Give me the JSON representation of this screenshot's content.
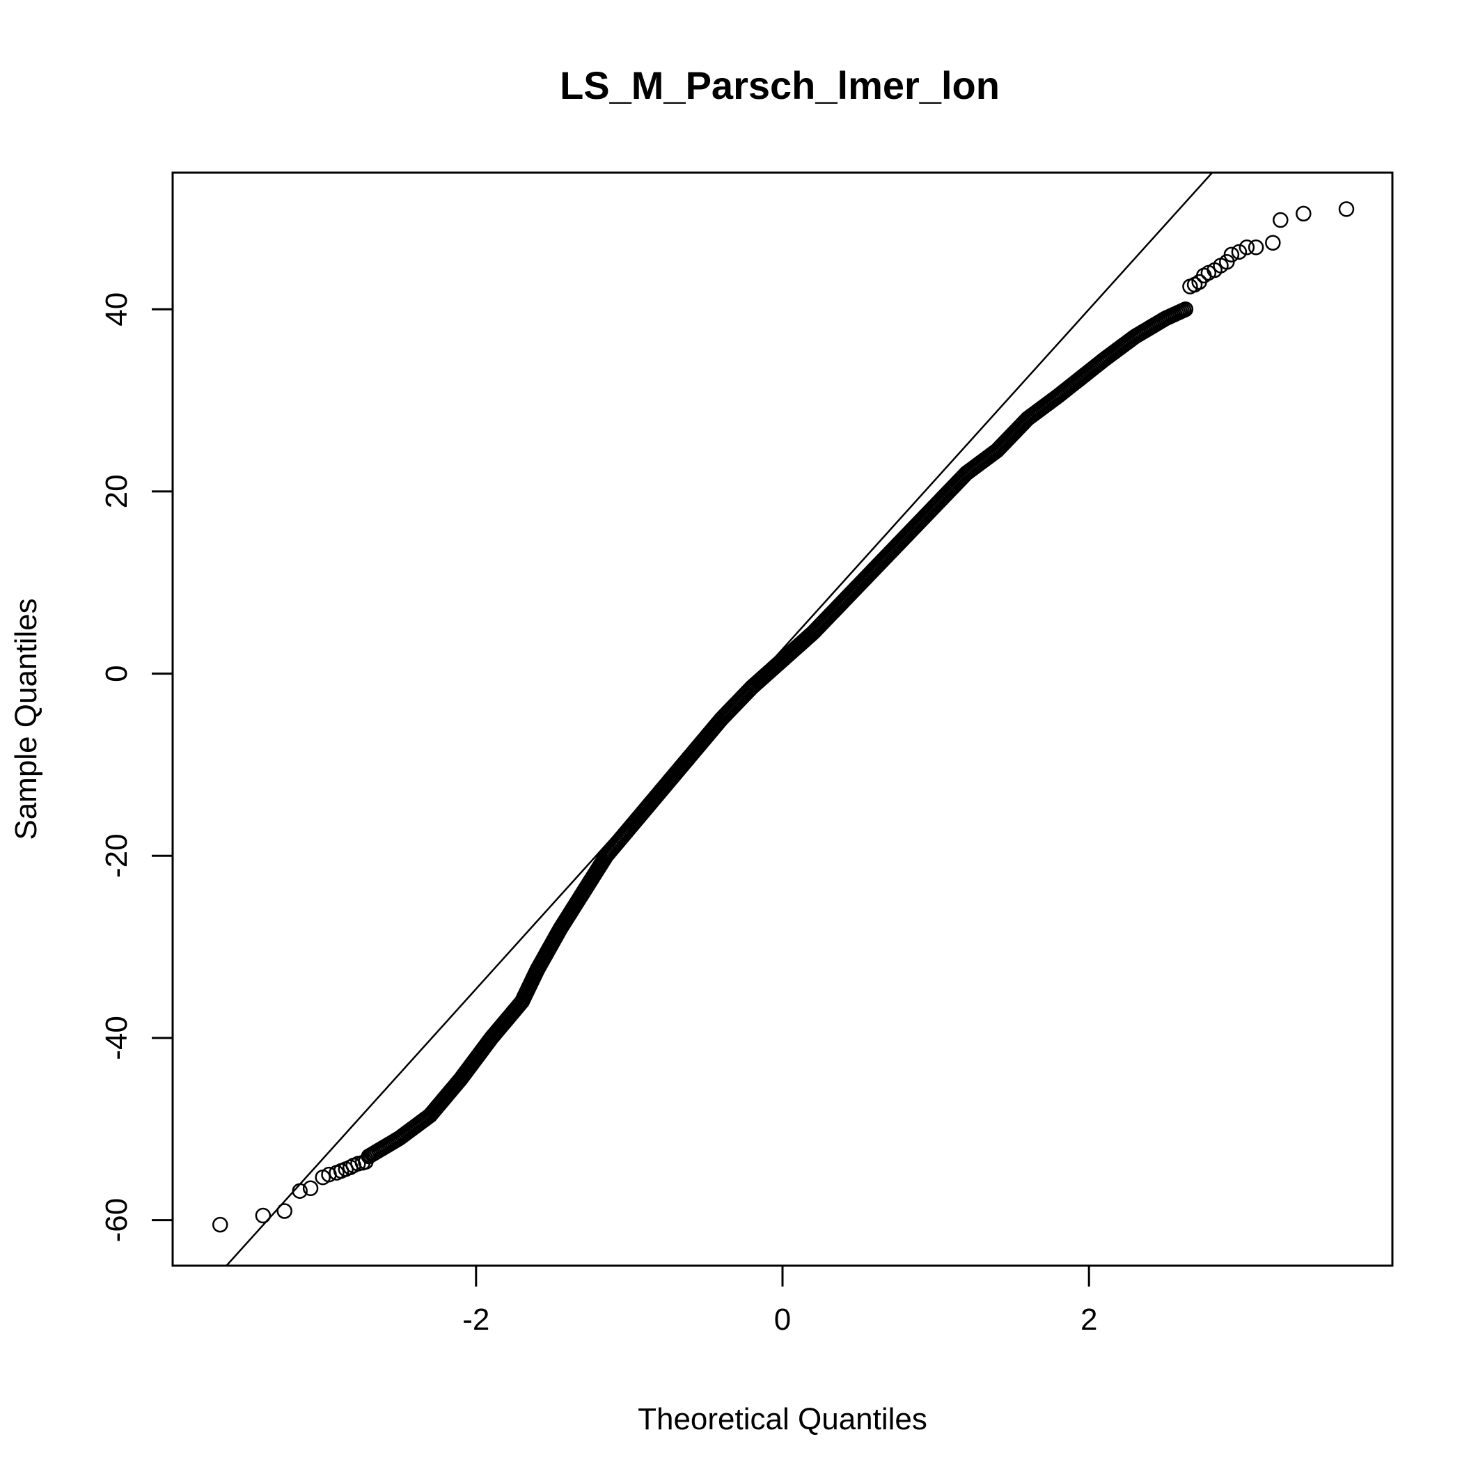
{
  "chart_data": {
    "type": "scatter",
    "title": "LS_M_Parsch_lmer_lon",
    "xlabel": "Theoretical Quantiles",
    "ylabel": "Sample Quantiles",
    "xlim": [
      -3.98,
      3.98
    ],
    "ylim": [
      -65.0,
      55.0
    ],
    "x_ticks": [
      -2,
      0,
      2
    ],
    "x_tick_labels": [
      "-2",
      "0",
      "2"
    ],
    "y_ticks": [
      -60,
      -40,
      -20,
      0,
      20,
      40
    ],
    "y_tick_labels": [
      "-60",
      "-40",
      "-20",
      "0",
      "20",
      "40"
    ],
    "grid": false,
    "marker": "open-circle",
    "colors": {
      "points": "#000000",
      "line": "#000000",
      "frame": "#000000"
    },
    "reference_line": {
      "p1": [
        -3.2,
        -57.0
      ],
      "p2": [
        2.0,
        40.0
      ]
    },
    "dense_curve": [
      [
        -2.7,
        -53.0
      ],
      [
        -2.5,
        -51.0
      ],
      [
        -2.3,
        -48.5
      ],
      [
        -2.1,
        -44.5
      ],
      [
        -1.9,
        -40.0
      ],
      [
        -1.7,
        -36.0
      ],
      [
        -1.6,
        -32.5
      ],
      [
        -1.45,
        -28.0
      ],
      [
        -1.3,
        -24.0
      ],
      [
        -1.15,
        -20.0
      ],
      [
        -1.0,
        -17.0
      ],
      [
        -0.8,
        -13.0
      ],
      [
        -0.6,
        -9.0
      ],
      [
        -0.4,
        -5.0
      ],
      [
        -0.2,
        -1.5
      ],
      [
        0.0,
        1.5
      ],
      [
        0.2,
        4.5
      ],
      [
        0.4,
        8.0
      ],
      [
        0.6,
        11.5
      ],
      [
        0.8,
        15.0
      ],
      [
        1.0,
        18.5
      ],
      [
        1.2,
        22.0
      ],
      [
        1.4,
        24.5
      ],
      [
        1.6,
        28.0
      ],
      [
        1.8,
        30.5
      ],
      [
        1.95,
        32.5
      ],
      [
        2.1,
        34.5
      ],
      [
        2.3,
        37.0
      ],
      [
        2.5,
        39.0
      ],
      [
        2.63,
        40.0
      ]
    ],
    "tail_points": [
      [
        -3.67,
        -60.5
      ],
      [
        -3.39,
        -59.5
      ],
      [
        -3.25,
        -59.0
      ],
      [
        -3.15,
        -56.8
      ],
      [
        -3.08,
        -56.5
      ],
      [
        -3.0,
        -55.3
      ],
      [
        -2.96,
        -55.0
      ],
      [
        -2.91,
        -54.8
      ],
      [
        -2.88,
        -54.6
      ],
      [
        -2.85,
        -54.4
      ],
      [
        -2.82,
        -54.2
      ],
      [
        -2.8,
        -54.0
      ],
      [
        -2.77,
        -53.8
      ],
      [
        -2.74,
        -53.7
      ],
      [
        -2.72,
        -53.6
      ],
      [
        2.66,
        42.5
      ],
      [
        2.69,
        42.7
      ],
      [
        2.72,
        43.0
      ],
      [
        2.75,
        43.7
      ],
      [
        2.78,
        44.0
      ],
      [
        2.82,
        44.3
      ],
      [
        2.86,
        44.8
      ],
      [
        2.9,
        45.2
      ],
      [
        2.93,
        46.0
      ],
      [
        2.98,
        46.3
      ],
      [
        3.03,
        46.8
      ],
      [
        3.09,
        46.8
      ],
      [
        3.2,
        47.3
      ],
      [
        3.25,
        49.8
      ],
      [
        3.4,
        50.5
      ],
      [
        3.68,
        51.0
      ]
    ]
  }
}
